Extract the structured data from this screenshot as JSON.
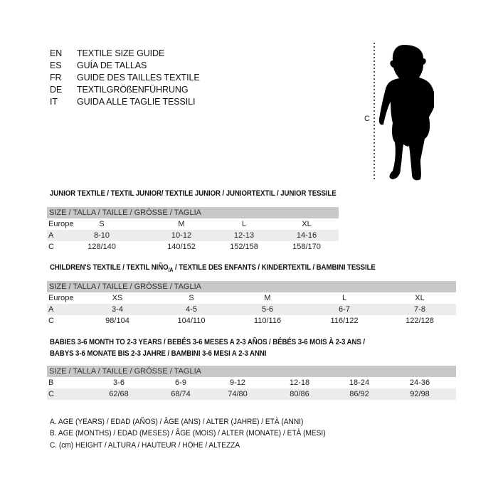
{
  "languages": [
    {
      "code": "EN",
      "text": "TEXTILE SIZE GUIDE"
    },
    {
      "code": "ES",
      "text": "GUÍA DE TALLAS"
    },
    {
      "code": "FR",
      "text": "GUIDE DES TAILLES TEXTILE"
    },
    {
      "code": "DE",
      "text": "TEXTILGRÖßENFÜHRUNG"
    },
    {
      "code": "IT",
      "text": "GUIDA ALLE TAGLIE TESSILI"
    }
  ],
  "figure": {
    "label": "C",
    "icon": "child-silhouette"
  },
  "junior": {
    "title": "JUNIOR TEXTILE / TEXTIL JUNIOR/ TEXTILE JUNIOR / JUNIORTEXTIL / JUNIOR TESSILE",
    "header": "SIZE / TALLA / TAILLE / GRÖSSE / TAGLIA",
    "rows": [
      {
        "label": "Europe",
        "cells": [
          "S",
          "M",
          "L",
          "XL"
        ]
      },
      {
        "label": "A",
        "cells": [
          "8-10",
          "10-12",
          "12-13",
          "14-16"
        ]
      },
      {
        "label": "C",
        "cells": [
          "128/140",
          "140/152",
          "152/158",
          "158/170"
        ]
      }
    ]
  },
  "children": {
    "title_a": "CHILDREN'S TEXTILE / TEXTIL NIÑO",
    "title_sub": "/A",
    "title_b": " / TEXTILE DES ENFANTS / KINDERTEXTIL / BAMBINI TESSILE",
    "header": "SIZE / TALLA / TAILLE / GRÖSSE / TAGLIA",
    "rows": [
      {
        "label": "Europe",
        "cells": [
          "XS",
          "S",
          "M",
          "L",
          "XL"
        ]
      },
      {
        "label": "A",
        "cells": [
          "3-4",
          "4-5",
          "5-6",
          "6-7",
          "7-8"
        ]
      },
      {
        "label": "C",
        "cells": [
          "98/104",
          "104/110",
          "110/116",
          "116/122",
          "122/128"
        ]
      }
    ]
  },
  "babies": {
    "title_line1": "BABIES 3-6 MONTH TO 2-3 YEARS / BEBÉS 3-6 MESES A 2-3 AÑOS / BÉBÉS 3-6 MOIS À 2-3 ANS /",
    "title_line2": "BABYS 3-6 MONATE BIS 2-3 JAHRE / BAMBINI 3-6 MESI A 2-3 ANNI",
    "header": "SIZE / TALLA / TAILLE / GRÖSSE / TAGLIA",
    "rows": [
      {
        "label": "B",
        "cells": [
          "3-6",
          "6-9",
          "9-12",
          "12-18",
          "18-24",
          "24-36"
        ]
      },
      {
        "label": "C",
        "cells": [
          "62/68",
          "68/74",
          "74/80",
          "80/86",
          "86/92",
          "92/98"
        ]
      }
    ]
  },
  "legend": [
    "A. AGE (YEARS) / EDAD (AÑOS) / ÂGE (ANS) / ALTER (JAHRE) / ETÀ (ANNI)",
    "B. AGE (MONTHS) / EDAD (MESES) / ÂGE (MOIS) / ALTER (MONATE) / ETÀ (MESI)",
    "C. (cm) HEIGHT / ALTURA / HAUTEUR / HÖHE / ALTEZZA"
  ]
}
